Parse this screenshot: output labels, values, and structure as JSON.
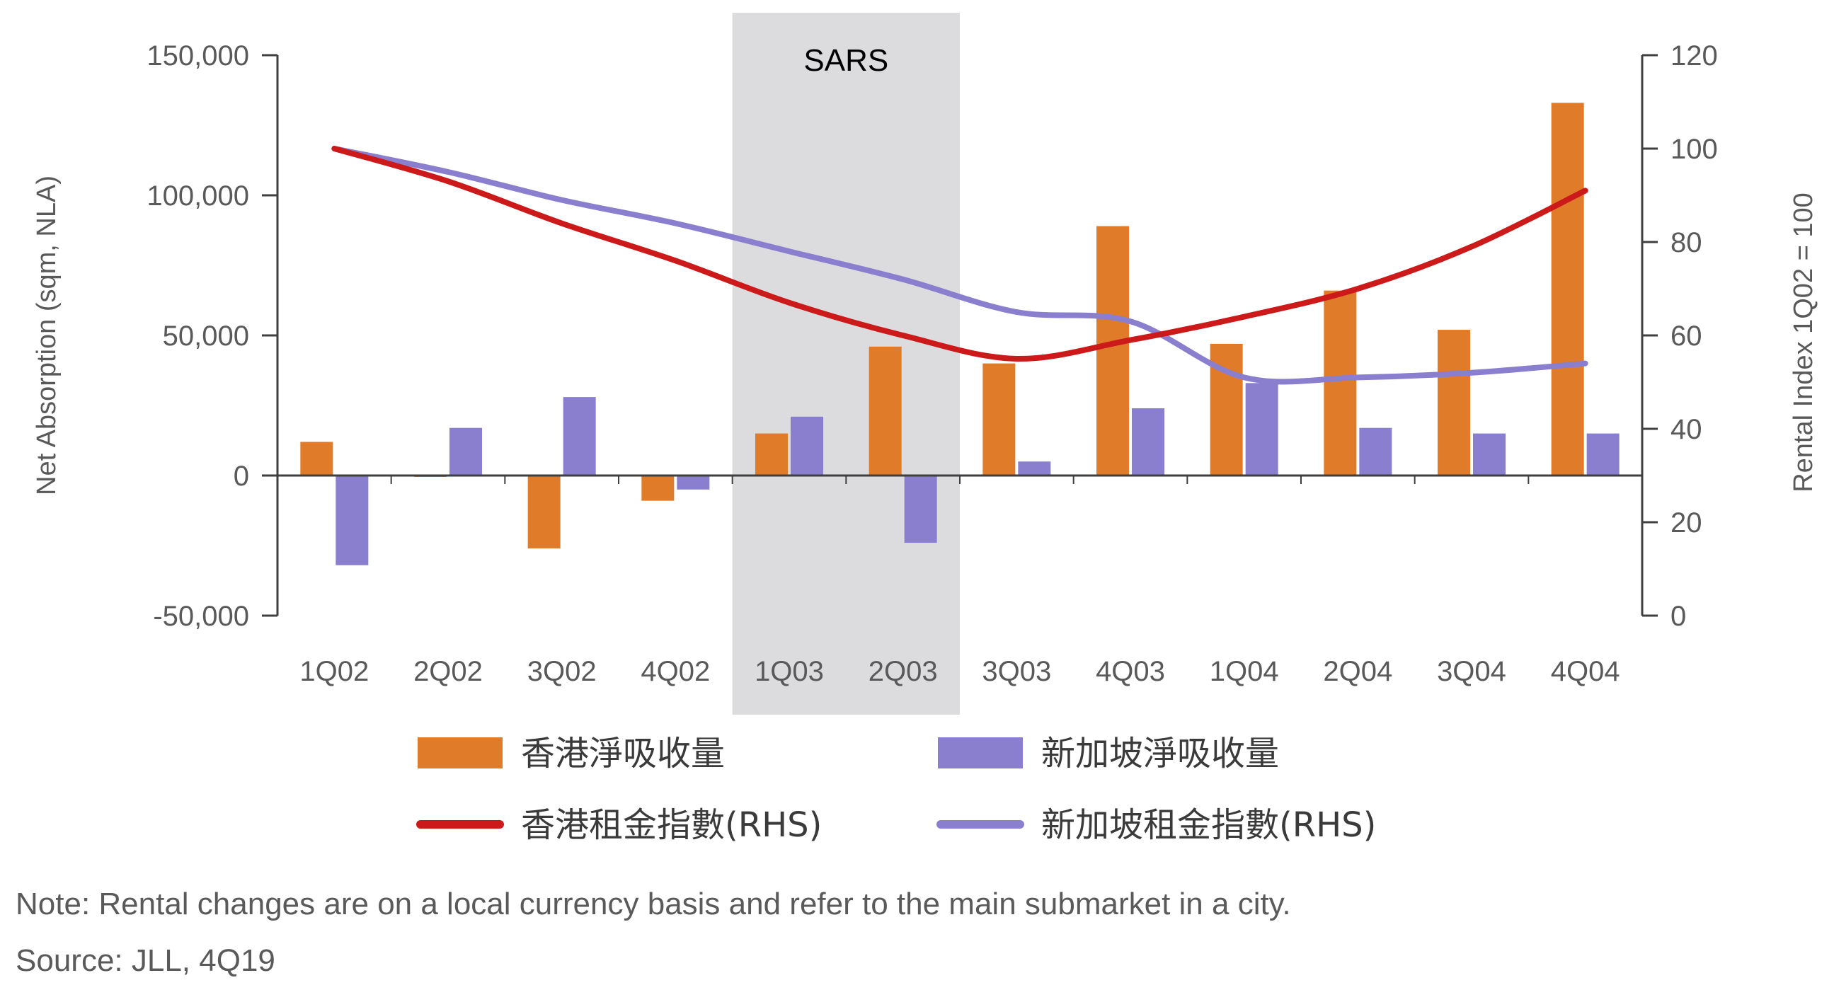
{
  "chart_data": {
    "type": "bar",
    "categories": [
      "1Q02",
      "2Q02",
      "3Q02",
      "4Q02",
      "1Q03",
      "2Q03",
      "3Q03",
      "4Q03",
      "1Q04",
      "2Q04",
      "3Q04",
      "4Q04"
    ],
    "series": [
      {
        "name": "香港淨吸收量",
        "kind": "bar",
        "axis": "left",
        "color": "#e07b2a",
        "values": [
          12000,
          -500,
          -26000,
          -9000,
          15000,
          46000,
          40000,
          89000,
          47000,
          66000,
          52000,
          133000
        ]
      },
      {
        "name": "新加坡淨吸收量",
        "kind": "bar",
        "axis": "left",
        "color": "#8a7fcf",
        "values": [
          -32000,
          17000,
          28000,
          -5000,
          21000,
          -24000,
          5000,
          24000,
          33000,
          17000,
          15000,
          15000
        ]
      },
      {
        "name": "香港租金指數(RHS)",
        "kind": "line",
        "axis": "right",
        "color": "#cc1a1a",
        "values": [
          100,
          93,
          84,
          76,
          67,
          60,
          55,
          59,
          64,
          70,
          79,
          91
        ]
      },
      {
        "name": "新加坡租金指數(RHS)",
        "kind": "line",
        "axis": "right",
        "color": "#8a7fcf",
        "values": [
          100,
          95,
          89,
          84,
          78,
          72,
          65,
          63,
          51,
          51,
          52,
          54
        ]
      }
    ],
    "ylabel": "Net Absorption (sqm, NLA)",
    "ylabel_right": "Rental Index 1Q02 = 100",
    "ylim": [
      -50000,
      150000
    ],
    "ylim_right": [
      0,
      120
    ],
    "yticks": [
      "150,000",
      "100,000",
      "50,000",
      "0",
      "-50,000"
    ],
    "yticks_right": [
      "120",
      "100",
      "80",
      "60",
      "40",
      "20",
      "0"
    ],
    "shaded_region": {
      "from": "1Q03",
      "to": "2Q03",
      "label": "SARS",
      "color": "#dcdcdf"
    },
    "grid": false,
    "legend_position": "bottom"
  },
  "notes": {
    "note": "Note: Rental changes are on a local currency basis and refer to the main submarket in a city.",
    "source": "Source: JLL, 4Q19"
  }
}
